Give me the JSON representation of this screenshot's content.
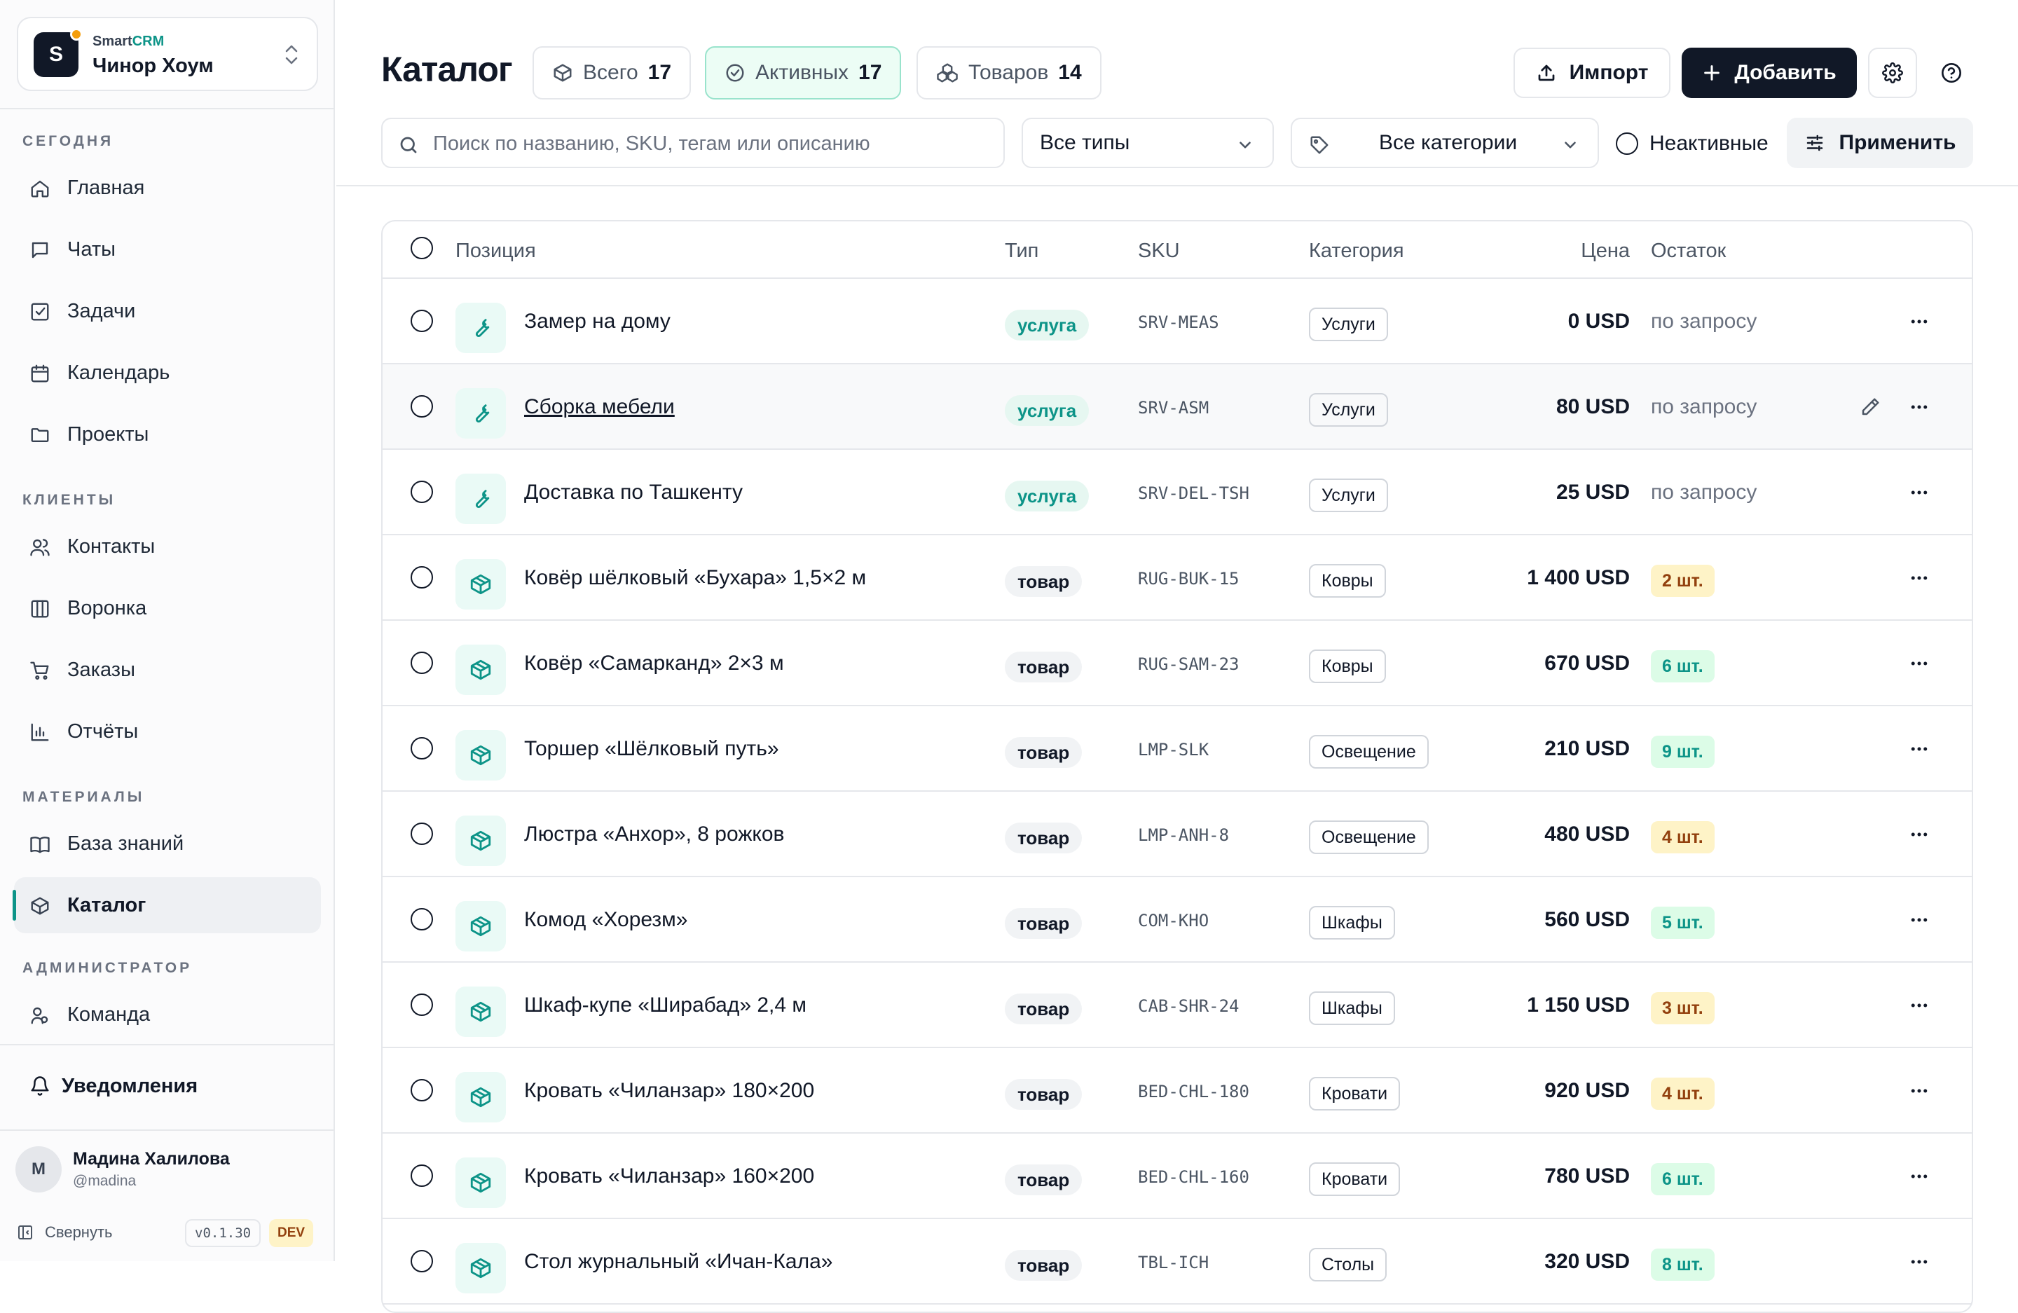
{
  "org": {
    "logo_letter": "S",
    "brand_prefix": "Smart",
    "brand_suffix": "CRM",
    "name": "Чинор Хоум"
  },
  "sidebar": {
    "sections": [
      {
        "title": "СЕГОДНЯ",
        "items": [
          {
            "label": "Главная",
            "icon": "home-icon"
          },
          {
            "label": "Чаты",
            "icon": "chat-icon"
          },
          {
            "label": "Задачи",
            "icon": "task-icon"
          },
          {
            "label": "Календарь",
            "icon": "calendar-icon"
          },
          {
            "label": "Проекты",
            "icon": "folder-icon"
          }
        ]
      },
      {
        "title": "КЛИЕНТЫ",
        "items": [
          {
            "label": "Контакты",
            "icon": "users-icon"
          },
          {
            "label": "Воронка",
            "icon": "kanban-icon"
          },
          {
            "label": "Заказы",
            "icon": "cart-icon"
          },
          {
            "label": "Отчёты",
            "icon": "chart-icon"
          }
        ]
      },
      {
        "title": "МАТЕРИАЛЫ",
        "items": [
          {
            "label": "База знаний",
            "icon": "book-icon"
          },
          {
            "label": "Каталог",
            "icon": "box-icon",
            "active": true
          }
        ]
      },
      {
        "title": "АДМИНИСТРАТОР",
        "items": [
          {
            "label": "Команда",
            "icon": "team-icon"
          }
        ]
      }
    ],
    "notifications_label": "Уведомления",
    "user": {
      "avatar_letter": "M",
      "name": "Мадина Халилова",
      "handle": "@madina"
    },
    "collapse_label": "Свернуть",
    "version": "v0.1.30",
    "env": "DEV"
  },
  "header": {
    "title": "Каталог",
    "stats": [
      {
        "label": "Всего",
        "value": "17",
        "icon": "box-icon"
      },
      {
        "label": "Активных",
        "value": "17",
        "icon": "check-circle-icon",
        "active": true
      },
      {
        "label": "Товаров",
        "value": "14",
        "icon": "boxes-icon"
      }
    ],
    "import_label": "Импорт",
    "add_label": "Добавить"
  },
  "filters": {
    "search_placeholder": "Поиск по названию, SKU, тегам или описанию",
    "search_value": "",
    "type_select": "Все типы",
    "category_select": "Все категории",
    "inactive_label": "Неактивные",
    "apply_label": "Применить"
  },
  "table": {
    "columns": {
      "position": "Позиция",
      "type": "Тип",
      "sku": "SKU",
      "category": "Категория",
      "price": "Цена",
      "stock": "Остаток"
    },
    "rows": [
      {
        "name": "Замер на дому",
        "type": "услуга",
        "kind": "service",
        "sku": "SRV-MEAS",
        "category": "Услуги",
        "price": "0 USD",
        "stock": "по запросу",
        "stock_level": "text"
      },
      {
        "name": "Сборка мебели",
        "type": "услуга",
        "kind": "service",
        "sku": "SRV-ASM",
        "category": "Услуги",
        "price": "80 USD",
        "stock": "по запросу",
        "stock_level": "text",
        "hover": true
      },
      {
        "name": "Доставка по Ташкенту",
        "type": "услуга",
        "kind": "service",
        "sku": "SRV-DEL-TSH",
        "category": "Услуги",
        "price": "25 USD",
        "stock": "по запросу",
        "stock_level": "text"
      },
      {
        "name": "Ковёр шёлковый «Бухара» 1,5×2 м",
        "type": "товар",
        "kind": "product",
        "sku": "RUG-BUK-15",
        "category": "Ковры",
        "price": "1 400 USD",
        "stock": "2 шт.",
        "stock_level": "low"
      },
      {
        "name": "Ковёр «Самарканд» 2×3 м",
        "type": "товар",
        "kind": "product",
        "sku": "RUG-SAM-23",
        "category": "Ковры",
        "price": "670 USD",
        "stock": "6 шт.",
        "stock_level": "ok"
      },
      {
        "name": "Торшер «Шёлковый путь»",
        "type": "товар",
        "kind": "product",
        "sku": "LMP-SLK",
        "category": "Освещение",
        "price": "210 USD",
        "stock": "9 шт.",
        "stock_level": "ok"
      },
      {
        "name": "Люстра «Анхор», 8 рожков",
        "type": "товар",
        "kind": "product",
        "sku": "LMP-ANH-8",
        "category": "Освещение",
        "price": "480 USD",
        "stock": "4 шт.",
        "stock_level": "low"
      },
      {
        "name": "Комод «Хорезм»",
        "type": "товар",
        "kind": "product",
        "sku": "COM-KHO",
        "category": "Шкафы",
        "price": "560 USD",
        "stock": "5 шт.",
        "stock_level": "ok"
      },
      {
        "name": "Шкаф-купе «Ширабад» 2,4 м",
        "type": "товар",
        "kind": "product",
        "sku": "CAB-SHR-24",
        "category": "Шкафы",
        "price": "1 150 USD",
        "stock": "3 шт.",
        "stock_level": "low"
      },
      {
        "name": "Кровать «Чиланзар» 180×200",
        "type": "товар",
        "kind": "product",
        "sku": "BED-CHL-180",
        "category": "Кровати",
        "price": "920 USD",
        "stock": "4 шт.",
        "stock_level": "low"
      },
      {
        "name": "Кровать «Чиланзар» 160×200",
        "type": "товар",
        "kind": "product",
        "sku": "BED-CHL-160",
        "category": "Кровати",
        "price": "780 USD",
        "stock": "6 шт.",
        "stock_level": "ok"
      },
      {
        "name": "Стол журнальный «Ичан-Кала»",
        "type": "товар",
        "kind": "product",
        "sku": "TBL-ICH",
        "category": "Столы",
        "price": "320 USD",
        "stock": "8 шт.",
        "stock_level": "ok"
      }
    ]
  },
  "colors": {
    "accent": "#0d9488",
    "dark": "#111827",
    "warning_bg": "#fef3c7",
    "success_bg": "#dcfce7"
  }
}
